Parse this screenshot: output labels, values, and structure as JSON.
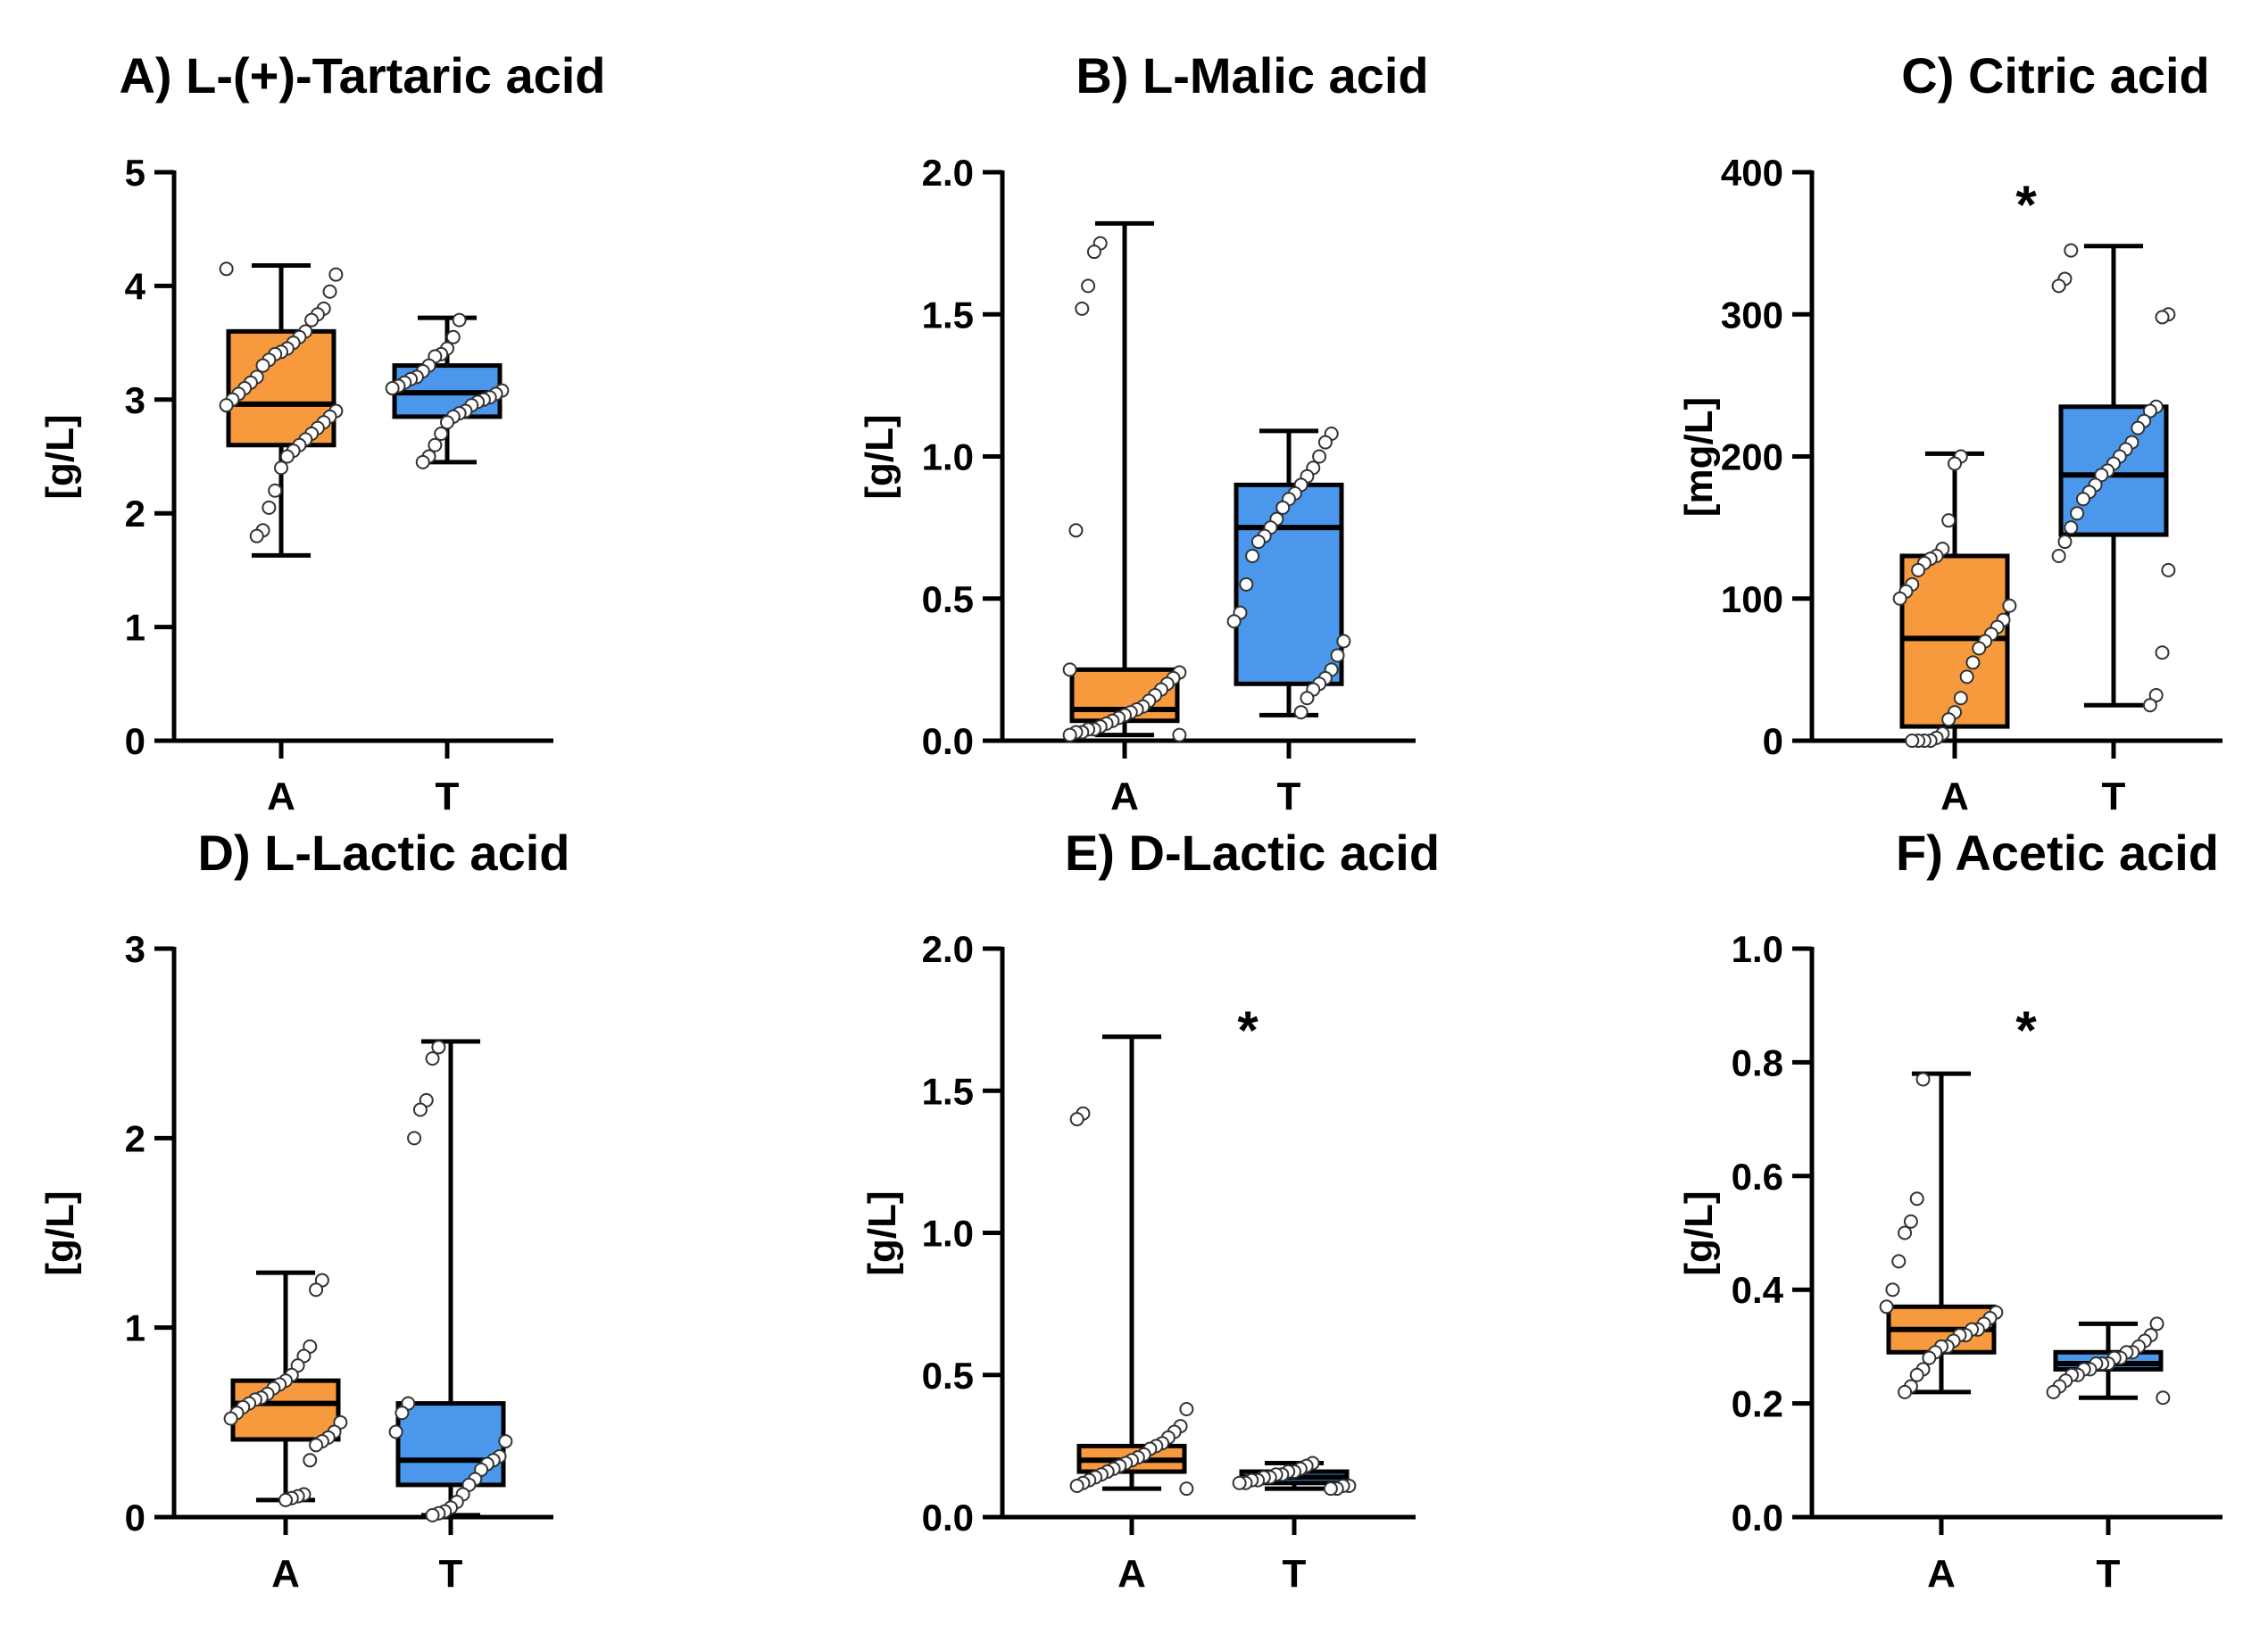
{
  "figure": {
    "colors": {
      "A": "#F79A3E",
      "T": "#4A97EC",
      "point_fill": "#ffffff",
      "line": "#000000"
    }
  },
  "chart_data": [
    {
      "type": "box",
      "title": "A) L-(+)-Tartaric acid",
      "ylabel": "[g/L]",
      "ylim": [
        0,
        5
      ],
      "yticks": [
        "0",
        "1",
        "2",
        "3",
        "4",
        "5"
      ],
      "categories": [
        "A",
        "T"
      ],
      "significance": "",
      "boxes": [
        {
          "name": "A",
          "min": 1.63,
          "q1": 2.6,
          "median": 2.96,
          "q3": 3.6,
          "max": 4.18,
          "points": [
            4.15,
            4.1,
            3.95,
            3.8,
            3.75,
            3.7,
            3.6,
            3.55,
            3.5,
            3.45,
            3.42,
            3.4,
            3.35,
            3.3,
            3.2,
            3.15,
            3.1,
            3.05,
            3.0,
            2.95,
            2.9,
            2.85,
            2.8,
            2.75,
            2.7,
            2.65,
            2.6,
            2.55,
            2.5,
            2.4,
            2.2,
            2.05,
            1.85,
            1.8
          ]
        },
        {
          "name": "T",
          "min": 2.45,
          "q1": 2.85,
          "median": 3.06,
          "q3": 3.3,
          "max": 3.72,
          "points": [
            3.7,
            3.55,
            3.45,
            3.4,
            3.38,
            3.3,
            3.25,
            3.2,
            3.18,
            3.15,
            3.12,
            3.1,
            3.08,
            3.05,
            3.02,
            3.0,
            2.98,
            2.95,
            2.9,
            2.88,
            2.85,
            2.8,
            2.7,
            2.6,
            2.5,
            2.45
          ]
        }
      ]
    },
    {
      "type": "box",
      "title": "B) L-Malic acid",
      "ylabel": "[g/L]",
      "ylim": [
        0,
        2
      ],
      "yticks": [
        "0.0",
        "0.5",
        "1.0",
        "1.5",
        "2.0"
      ],
      "categories": [
        "A",
        "T"
      ],
      "significance": "",
      "boxes": [
        {
          "name": "A",
          "min": 0.02,
          "q1": 0.07,
          "median": 0.11,
          "q3": 0.25,
          "max": 1.82,
          "points": [
            1.75,
            1.72,
            1.6,
            1.52,
            0.74,
            0.25,
            0.24,
            0.22,
            0.2,
            0.18,
            0.16,
            0.14,
            0.12,
            0.11,
            0.1,
            0.09,
            0.08,
            0.07,
            0.06,
            0.05,
            0.04,
            0.04,
            0.03,
            0.03,
            0.02,
            0.02
          ]
        },
        {
          "name": "T",
          "min": 0.09,
          "q1": 0.2,
          "median": 0.75,
          "q3": 0.9,
          "max": 1.09,
          "points": [
            1.08,
            1.05,
            1.0,
            0.96,
            0.93,
            0.9,
            0.87,
            0.85,
            0.82,
            0.78,
            0.75,
            0.72,
            0.7,
            0.65,
            0.55,
            0.45,
            0.42,
            0.35,
            0.3,
            0.25,
            0.22,
            0.2,
            0.18,
            0.15,
            0.1
          ]
        }
      ]
    },
    {
      "type": "box",
      "title": "C) Citric acid",
      "ylabel": "[mg/L]",
      "ylim": [
        0,
        400
      ],
      "yticks": [
        "0",
        "100",
        "200",
        "300",
        "400"
      ],
      "categories": [
        "A",
        "T"
      ],
      "significance": "*",
      "boxes": [
        {
          "name": "A",
          "min": 0,
          "q1": 10,
          "median": 72,
          "q3": 130,
          "max": 202,
          "points": [
            200,
            195,
            155,
            135,
            130,
            128,
            125,
            120,
            110,
            105,
            100,
            95,
            85,
            80,
            75,
            70,
            65,
            55,
            45,
            30,
            20,
            15,
            5,
            2,
            0,
            0,
            0,
            0
          ]
        },
        {
          "name": "T",
          "min": 25,
          "q1": 145,
          "median": 187,
          "q3": 235,
          "max": 348,
          "points": [
            345,
            325,
            320,
            300,
            298,
            235,
            232,
            225,
            220,
            210,
            205,
            200,
            195,
            190,
            187,
            180,
            175,
            170,
            160,
            150,
            140,
            130,
            120,
            62,
            32,
            25
          ]
        }
      ]
    },
    {
      "type": "box",
      "title": "D) L-Lactic acid",
      "ylabel": "[g/L]",
      "ylim": [
        0,
        3
      ],
      "yticks": [
        "0",
        "1",
        "2",
        "3"
      ],
      "categories": [
        "A",
        "T"
      ],
      "significance": "",
      "boxes": [
        {
          "name": "A",
          "min": 0.09,
          "q1": 0.41,
          "median": 0.6,
          "q3": 0.72,
          "max": 1.29,
          "points": [
            1.25,
            1.2,
            0.9,
            0.85,
            0.8,
            0.75,
            0.72,
            0.7,
            0.68,
            0.65,
            0.63,
            0.62,
            0.6,
            0.58,
            0.55,
            0.52,
            0.5,
            0.45,
            0.42,
            0.4,
            0.38,
            0.3,
            0.12,
            0.11,
            0.1,
            0.09
          ]
        },
        {
          "name": "T",
          "min": 0.01,
          "q1": 0.17,
          "median": 0.3,
          "q3": 0.6,
          "max": 2.51,
          "points": [
            2.48,
            2.42,
            2.2,
            2.15,
            2.0,
            0.6,
            0.55,
            0.45,
            0.4,
            0.32,
            0.3,
            0.28,
            0.25,
            0.2,
            0.17,
            0.12,
            0.08,
            0.05,
            0.03,
            0.02,
            0.01
          ]
        }
      ]
    },
    {
      "type": "box",
      "title": "E) D-Lactic acid",
      "ylabel": "[g/L]",
      "ylim": [
        0,
        2
      ],
      "yticks": [
        "0.0",
        "0.5",
        "1.0",
        "1.5",
        "2.0"
      ],
      "categories": [
        "A",
        "T"
      ],
      "significance": "*",
      "boxes": [
        {
          "name": "A",
          "min": 0.1,
          "q1": 0.16,
          "median": 0.2,
          "q3": 0.25,
          "max": 1.69,
          "points": [
            1.42,
            1.4,
            0.38,
            0.32,
            0.3,
            0.28,
            0.26,
            0.25,
            0.24,
            0.22,
            0.21,
            0.2,
            0.19,
            0.18,
            0.17,
            0.16,
            0.15,
            0.14,
            0.13,
            0.12,
            0.11,
            0.1
          ]
        },
        {
          "name": "T",
          "min": 0.1,
          "q1": 0.12,
          "median": 0.14,
          "q3": 0.16,
          "max": 0.19,
          "points": [
            0.19,
            0.18,
            0.17,
            0.16,
            0.16,
            0.15,
            0.15,
            0.14,
            0.14,
            0.13,
            0.13,
            0.12,
            0.12,
            0.11,
            0.11,
            0.1,
            0.1
          ]
        }
      ]
    },
    {
      "type": "box",
      "title": "F) Acetic acid",
      "ylabel": "[g/L]",
      "ylim": [
        0,
        1
      ],
      "yticks": [
        "0.0",
        "0.2",
        "0.4",
        "0.6",
        "0.8",
        "1.0"
      ],
      "categories": [
        "A",
        "T"
      ],
      "significance": "*",
      "boxes": [
        {
          "name": "A",
          "min": 0.22,
          "q1": 0.29,
          "median": 0.33,
          "q3": 0.37,
          "max": 0.78,
          "points": [
            0.77,
            0.56,
            0.52,
            0.5,
            0.45,
            0.4,
            0.37,
            0.36,
            0.35,
            0.34,
            0.33,
            0.33,
            0.32,
            0.32,
            0.31,
            0.3,
            0.3,
            0.29,
            0.28,
            0.26,
            0.25,
            0.23,
            0.22
          ]
        },
        {
          "name": "T",
          "min": 0.21,
          "q1": 0.26,
          "median": 0.27,
          "q3": 0.29,
          "max": 0.34,
          "points": [
            0.34,
            0.32,
            0.31,
            0.3,
            0.29,
            0.29,
            0.28,
            0.28,
            0.27,
            0.27,
            0.27,
            0.26,
            0.26,
            0.25,
            0.25,
            0.24,
            0.23,
            0.22,
            0.21
          ]
        }
      ]
    }
  ]
}
